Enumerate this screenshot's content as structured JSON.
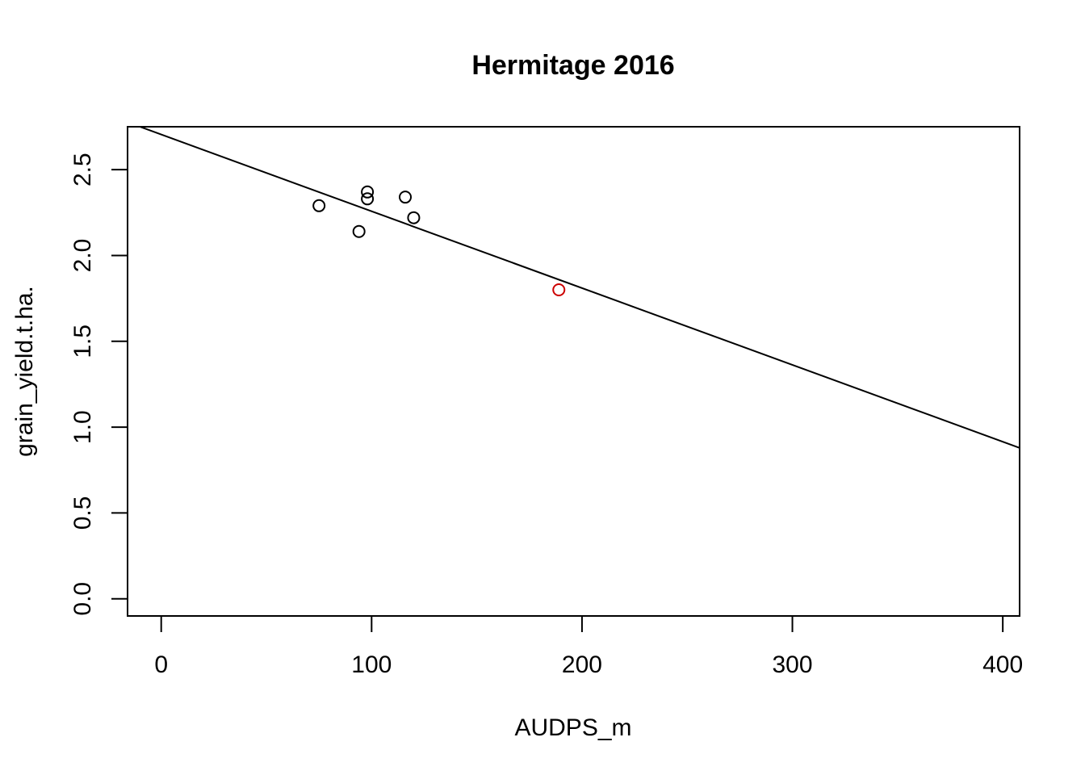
{
  "chart_data": {
    "type": "scatter",
    "title": "Hermitage 2016",
    "xlabel": "AUDPS_m",
    "ylabel": "grain_yield.t.ha.",
    "xlim": [
      -16,
      408
    ],
    "ylim": [
      -0.1,
      2.75
    ],
    "x_ticks": [
      0,
      100,
      200,
      300,
      400
    ],
    "y_ticks": [
      0.0,
      0.5,
      1.0,
      1.5,
      2.0,
      2.5
    ],
    "x_tick_labels": [
      "0",
      "100",
      "200",
      "300",
      "400"
    ],
    "y_tick_labels": [
      "0.0",
      "0.5",
      "1.0",
      "1.5",
      "2.0",
      "2.5"
    ],
    "grid": false,
    "points": [
      {
        "x": 75,
        "y": 2.29,
        "color": "#000000"
      },
      {
        "x": 94,
        "y": 2.14,
        "color": "#000000"
      },
      {
        "x": 98,
        "y": 2.37,
        "color": "#000000"
      },
      {
        "x": 98,
        "y": 2.33,
        "color": "#000000"
      },
      {
        "x": 116,
        "y": 2.34,
        "color": "#000000"
      },
      {
        "x": 120,
        "y": 2.22,
        "color": "#000000"
      },
      {
        "x": 189,
        "y": 1.8,
        "color": "#cc0000"
      }
    ],
    "fit_line": {
      "intercept": 2.705,
      "slope": -0.004475,
      "color": "#000000"
    }
  }
}
